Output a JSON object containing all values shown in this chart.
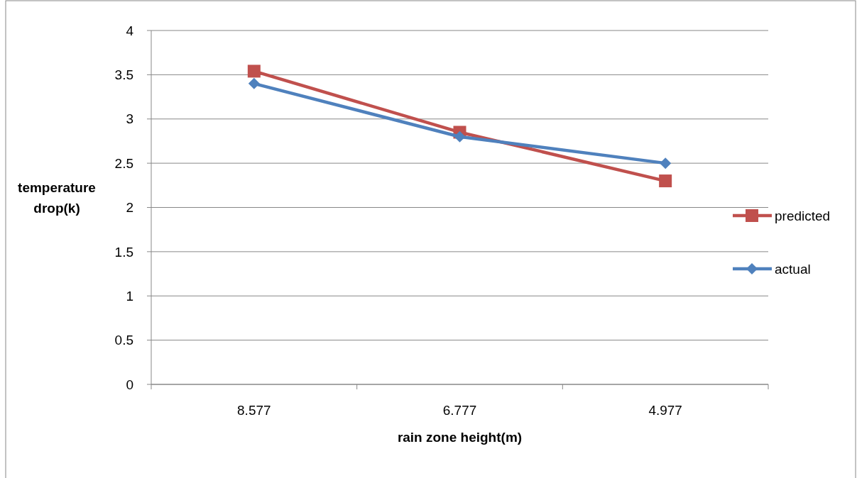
{
  "chart_data": {
    "type": "line",
    "xlabel": "rain zone height(m)",
    "ylabel": "temperature drop(k)",
    "categories": [
      "8.577",
      "6.777",
      "4.977"
    ],
    "series": [
      {
        "name": "predicted",
        "color": "#c0504d",
        "values": [
          3.54,
          2.85,
          2.3
        ],
        "marker": "square"
      },
      {
        "name": "actual",
        "color": "#4f81bd",
        "values": [
          3.4,
          2.8,
          2.5
        ],
        "marker": "diamond"
      }
    ],
    "ylim": [
      0,
      4
    ],
    "yticks": [
      0,
      0.5,
      1,
      1.5,
      2,
      2.5,
      3,
      3.5,
      4
    ],
    "grid": "y",
    "legend": "right",
    "line_style": "solid"
  }
}
